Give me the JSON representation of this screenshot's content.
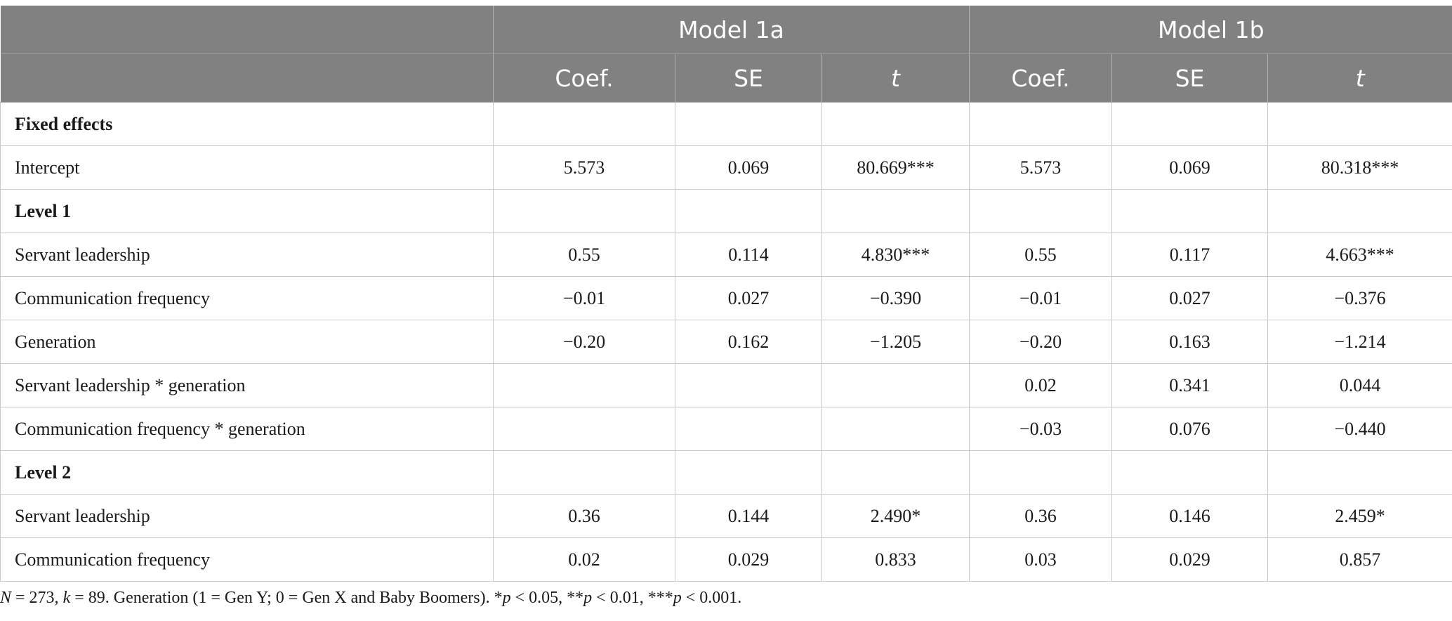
{
  "models": [
    "Model 1a",
    "Model 1b"
  ],
  "subheaders": [
    "Coef.",
    "SE",
    "t",
    "Coef.",
    "SE",
    "t"
  ],
  "rows": [
    {
      "label": "Fixed effects",
      "section": true,
      "vals": [
        "",
        "",
        "",
        "",
        "",
        ""
      ]
    },
    {
      "label": "Intercept",
      "section": false,
      "vals": [
        "5.573",
        "0.069",
        "80.669***",
        "5.573",
        "0.069",
        "80.318***"
      ]
    },
    {
      "label": "Level 1",
      "section": true,
      "vals": [
        "",
        "",
        "",
        "",
        "",
        ""
      ]
    },
    {
      "label": "Servant leadership",
      "section": false,
      "vals": [
        "0.55",
        "0.114",
        "4.830***",
        "0.55",
        "0.117",
        "4.663***"
      ]
    },
    {
      "label": "Communication frequency",
      "section": false,
      "vals": [
        "−0.01",
        "0.027",
        "−0.390",
        "−0.01",
        "0.027",
        "−0.376"
      ]
    },
    {
      "label": "Generation",
      "section": false,
      "vals": [
        "−0.20",
        "0.162",
        "−1.205",
        "−0.20",
        "0.163",
        "−1.214"
      ]
    },
    {
      "label": "Servant leadership * generation",
      "section": false,
      "vals": [
        "",
        "",
        "",
        "0.02",
        "0.341",
        "0.044"
      ]
    },
    {
      "label": "Communication frequency * generation",
      "section": false,
      "vals": [
        "",
        "",
        "",
        "−0.03",
        "0.076",
        "−0.440"
      ]
    },
    {
      "label": "Level 2",
      "section": true,
      "vals": [
        "",
        "",
        "",
        "",
        "",
        ""
      ]
    },
    {
      "label": "Servant leadership",
      "section": false,
      "vals": [
        "0.36",
        "0.144",
        "2.490*",
        "0.36",
        "0.146",
        "2.459*"
      ]
    },
    {
      "label": "Communication frequency",
      "section": false,
      "vals": [
        "0.02",
        "0.029",
        "0.833",
        "0.03",
        "0.029",
        "0.857"
      ]
    }
  ],
  "note": {
    "n": "N",
    "n_text": " = 273, ",
    "k": "k",
    "k_text": " = 89. Generation (1 = Gen Y; 0 = Gen X and Baby Boomers). *",
    "p1": "p",
    "p1_text": " < 0.05, **",
    "p2": "p",
    "p2_text": " < 0.01, ***",
    "p3": "p",
    "p3_text": " < 0.001."
  }
}
